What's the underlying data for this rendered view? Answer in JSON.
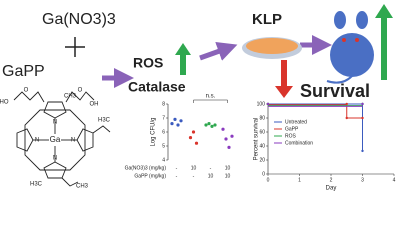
{
  "labels": {
    "reagent": "Ga(NO3)3",
    "compound": "GaPP",
    "ros": "ROS",
    "catalase": "Catalase",
    "bacteria": "KLP",
    "outcome": "Survival"
  },
  "atoms": [
    "Ga",
    "N",
    "N",
    "N",
    "N",
    "HO",
    "O",
    "OH",
    "O",
    "H3C",
    "CH3",
    "H3C",
    "CH3"
  ],
  "chart_data": [
    {
      "type": "scatter",
      "y_label": "Log CFU/g",
      "annotation": "n.s.",
      "ylim": [
        4,
        8
      ],
      "yticks": [
        4,
        5,
        6,
        7,
        8
      ],
      "row_labels": [
        "Ga(NO3)3 (mg/kg)",
        "GaPP (mg/kg)"
      ],
      "conditions": [
        [
          "-",
          "-"
        ],
        [
          "10",
          "-"
        ],
        [
          "-",
          "10"
        ],
        [
          "10",
          "10"
        ]
      ],
      "series": [
        {
          "color": "#3b5bbf",
          "values": [
            6.6,
            6.9,
            6.5,
            6.8
          ]
        },
        {
          "color": "#d9342b",
          "values": [
            5.6,
            6.0,
            5.2
          ]
        },
        {
          "color": "#2fa84f",
          "values": [
            6.5,
            6.6,
            6.4,
            6.5
          ]
        },
        {
          "color": "#8a3bbf",
          "values": [
            6.2,
            5.5,
            4.9,
            5.7
          ]
        }
      ]
    },
    {
      "type": "line",
      "y_label": "Percent survival",
      "x_label": "Day",
      "xlim": [
        0,
        4
      ],
      "xticks": [
        0,
        1,
        2,
        3,
        4
      ],
      "ylim": [
        0,
        100
      ],
      "yticks": [
        0,
        20,
        40,
        60,
        80,
        100
      ],
      "series": [
        {
          "name": "Untreated",
          "color": "#3b5bbf",
          "x": [
            0,
            3,
            3
          ],
          "values": [
            100,
            100,
            33
          ]
        },
        {
          "name": "GaPP",
          "color": "#d9342b",
          "x": [
            0,
            2.5,
            2.5,
            3
          ],
          "values": [
            100,
            100,
            80,
            80
          ]
        },
        {
          "name": "ROS",
          "color": "#2fa84f",
          "x": [
            0,
            3
          ],
          "values": [
            100,
            100
          ]
        },
        {
          "name": "Combination",
          "color": "#8a3bbf",
          "x": [
            0,
            3
          ],
          "values": [
            100,
            100
          ]
        }
      ]
    }
  ]
}
